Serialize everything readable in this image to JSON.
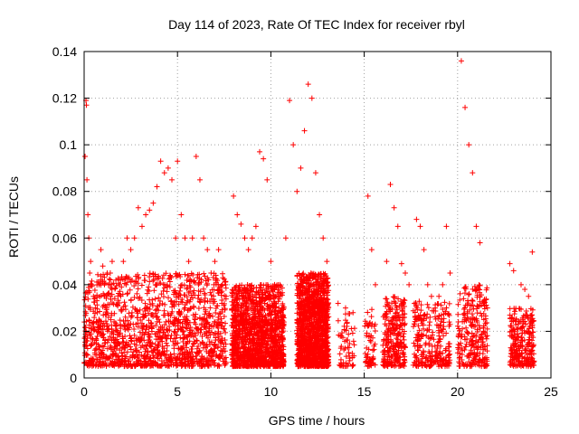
{
  "chart_data": {
    "type": "scatter",
    "title": "Day 114 of 2023, Rate Of TEC Index for receiver rbyl",
    "xlabel": "GPS time / hours",
    "ylabel": "ROTI / TECUs",
    "xlim": [
      0,
      25
    ],
    "ylim": [
      0,
      0.14
    ],
    "xticks": [
      0,
      5,
      10,
      15,
      20,
      25
    ],
    "xtick_labels": [
      "0",
      "5",
      "10",
      "15",
      "20",
      "25"
    ],
    "yticks": [
      0,
      0.02,
      0.04,
      0.06,
      0.08,
      0.1,
      0.12,
      0.14
    ],
    "ytick_labels": [
      "0",
      "0.02",
      "0.04",
      "0.06",
      "0.08",
      "0.1",
      "0.12",
      "0.14"
    ],
    "grid": true,
    "marker": "+",
    "color": "#ff0000",
    "series": [
      {
        "name": "ROTI",
        "x": [
          0.05,
          0.1,
          0.12,
          0.15,
          0.2,
          0.25,
          0.3,
          0.35,
          0.4,
          0.5,
          0.6,
          0.7,
          0.8,
          0.9,
          1.0,
          1.1,
          1.2,
          1.3,
          1.4,
          1.5,
          1.7,
          1.9,
          2.1,
          2.3,
          2.5,
          2.7,
          2.9,
          3.1,
          3.3,
          3.5,
          3.7,
          3.9,
          4.1,
          4.3,
          4.5,
          4.7,
          4.9,
          5.0,
          5.2,
          5.4,
          5.6,
          5.8,
          6.0,
          6.2,
          6.4,
          6.6,
          6.8,
          7.0,
          7.2,
          7.4,
          7.6,
          8.0,
          8.2,
          8.4,
          8.6,
          8.8,
          9.0,
          9.2,
          9.4,
          9.6,
          9.8,
          10.0,
          10.2,
          10.4,
          10.6,
          10.8,
          11.0,
          11.2,
          11.4,
          11.6,
          11.8,
          12.0,
          12.2,
          12.4,
          12.6,
          12.8,
          13.0,
          13.6,
          14.0,
          14.4,
          15.2,
          15.4,
          15.6,
          16.2,
          16.4,
          16.6,
          16.8,
          17.0,
          17.2,
          17.4,
          17.8,
          18.0,
          18.2,
          18.4,
          18.6,
          18.8,
          19.0,
          19.2,
          19.4,
          19.6,
          20.2,
          20.4,
          20.6,
          20.8,
          21.0,
          21.2,
          21.6,
          22.8,
          23.0,
          23.4,
          23.6,
          23.8,
          24.0
        ],
        "y": [
          0.095,
          0.119,
          0.117,
          0.085,
          0.07,
          0.06,
          0.045,
          0.05,
          0.04,
          0.035,
          0.03,
          0.028,
          0.04,
          0.055,
          0.048,
          0.035,
          0.03,
          0.04,
          0.045,
          0.05,
          0.042,
          0.04,
          0.05,
          0.06,
          0.055,
          0.06,
          0.073,
          0.065,
          0.07,
          0.072,
          0.075,
          0.082,
          0.093,
          0.088,
          0.09,
          0.085,
          0.06,
          0.093,
          0.07,
          0.06,
          0.05,
          0.06,
          0.095,
          0.085,
          0.06,
          0.055,
          0.045,
          0.05,
          0.055,
          0.04,
          0.035,
          0.078,
          0.07,
          0.066,
          0.06,
          0.055,
          0.06,
          0.065,
          0.097,
          0.094,
          0.085,
          0.05,
          0.04,
          0.035,
          0.03,
          0.06,
          0.119,
          0.1,
          0.08,
          0.09,
          0.106,
          0.126,
          0.12,
          0.088,
          0.07,
          0.06,
          0.05,
          0.032,
          0.03,
          0.028,
          0.078,
          0.055,
          0.04,
          0.05,
          0.083,
          0.073,
          0.065,
          0.049,
          0.045,
          0.04,
          0.068,
          0.065,
          0.055,
          0.04,
          0.035,
          0.03,
          0.035,
          0.04,
          0.065,
          0.045,
          0.136,
          0.116,
          0.1,
          0.088,
          0.065,
          0.058,
          0.03,
          0.049,
          0.046,
          0.04,
          0.038,
          0.035,
          0.054
        ]
      }
    ],
    "band_density": [
      {
        "x_start": 0.0,
        "x_end": 7.6,
        "y_low": 0.005,
        "y_high": 0.045,
        "density": "dense"
      },
      {
        "x_start": 7.9,
        "x_end": 10.7,
        "y_low": 0.005,
        "y_high": 0.04,
        "density": "dense"
      },
      {
        "x_start": 11.4,
        "x_end": 13.1,
        "y_low": 0.005,
        "y_high": 0.045,
        "density": "dense"
      },
      {
        "x_start": 13.6,
        "x_end": 14.5,
        "y_low": 0.005,
        "y_high": 0.03,
        "density": "sparse"
      },
      {
        "x_start": 15.0,
        "x_end": 15.6,
        "y_low": 0.005,
        "y_high": 0.03,
        "density": "sparse"
      },
      {
        "x_start": 16.0,
        "x_end": 17.2,
        "y_low": 0.005,
        "y_high": 0.035,
        "density": "medium"
      },
      {
        "x_start": 17.6,
        "x_end": 19.6,
        "y_low": 0.005,
        "y_high": 0.033,
        "density": "medium"
      },
      {
        "x_start": 20.0,
        "x_end": 21.6,
        "y_low": 0.005,
        "y_high": 0.04,
        "density": "medium"
      },
      {
        "x_start": 22.8,
        "x_end": 24.1,
        "y_low": 0.005,
        "y_high": 0.03,
        "density": "medium"
      }
    ]
  }
}
